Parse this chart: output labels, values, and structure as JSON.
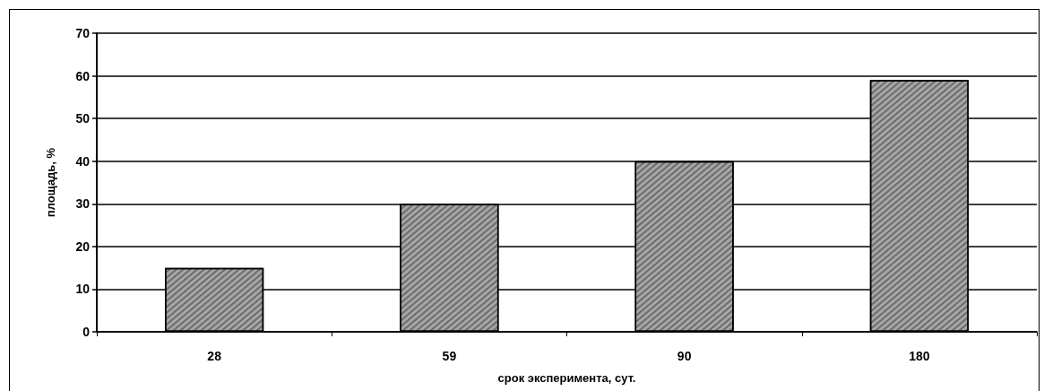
{
  "chart_data": {
    "type": "bar",
    "xlabel": "срок эксперимента, сут.",
    "ylabel": "площадь, %",
    "categories": [
      "28",
      "59",
      "90",
      "180"
    ],
    "values": [
      15,
      30,
      40,
      59
    ],
    "color": "#a6a6a6",
    "ylim": [
      0,
      70
    ],
    "yticks": [
      0,
      10,
      20,
      30,
      40,
      50,
      60,
      70
    ],
    "grid": "y"
  }
}
